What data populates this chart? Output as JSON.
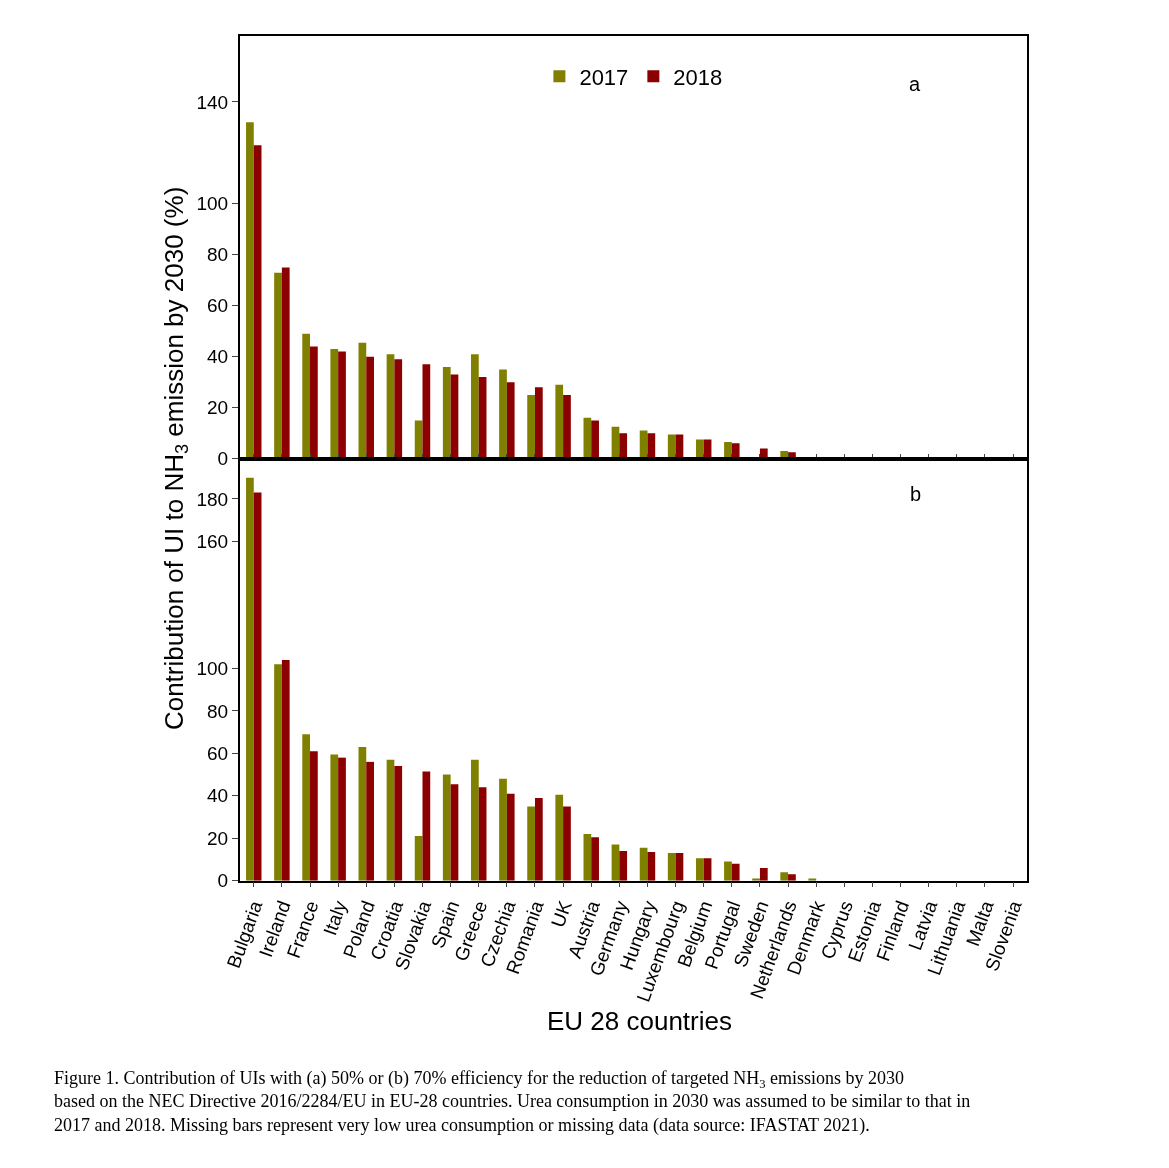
{
  "chart_data": [
    {
      "type": "bar",
      "annotations": [
        "a"
      ],
      "ylabel": "Contribution of UI to NH$_{3}$ emission by 2030 (%)",
      "categories": [
        null,
        null,
        null,
        null,
        null,
        null,
        null,
        null,
        null,
        null,
        null,
        null,
        null,
        null,
        null,
        null,
        null,
        null,
        null,
        null,
        null,
        null,
        null,
        null,
        null,
        null,
        null,
        null
      ],
      "series": [
        {
          "name": "2017",
          "color": "#808000",
          "values": [
            132,
            73,
            49,
            43,
            45.5,
            41,
            15,
            36,
            41,
            35,
            25,
            29,
            16,
            12.5,
            11,
            9.5,
            7.5,
            6.5,
            null,
            3,
            null,
            null,
            null,
            null,
            null,
            null,
            null,
            null
          ]
        },
        {
          "name": "2018",
          "color": "#8b0000",
          "values": [
            123,
            75,
            44,
            42,
            40,
            39,
            37,
            33,
            32,
            30,
            28,
            25,
            15,
            10,
            10,
            9.5,
            7.5,
            6,
            4,
            2.5,
            null,
            null,
            null,
            null,
            null,
            null,
            null,
            null
          ]
        }
      ],
      "ylim": [
        0,
        166
      ],
      "yticks": [
        0,
        20,
        40,
        60,
        80,
        100,
        140
      ],
      "legend": "top",
      "tick_labels": "y"
    },
    {
      "type": "bar",
      "annotations": [
        "b",
        "Figure 1. Contribution of UIs with (a) 50% or (b) 70% efficiency for the reduction of targeted NH$_{3}$ emissions by 2030 based on the NEC Directive 2016/2284/EU in EU-28 countries. Urea consumption in 2030 was assumed to be similar to that in 2017 and 2018. Missing bars represent very low urea consumption or missing data (data source: IFASTAT 2021)."
      ],
      "xlabel": "EU 28 countries",
      "categories": [
        "Bulgaria",
        "Ireland",
        "France",
        "Italy",
        "Poland",
        "Croatia",
        "Slovakia",
        "Spain",
        "Greece",
        "Czechia",
        "Romania",
        "UK",
        "Austria",
        "Germany",
        "Hungary",
        "Luxembourg",
        "Belgium",
        "Portugal",
        "Sweden",
        "Netherlands",
        "Denmark",
        "Cyprus",
        "Estonia",
        "Finland",
        "Latvia",
        "Lithuania",
        "Malta",
        "Slovenia"
      ],
      "series": [
        {
          "color": "#808000",
          "values": [
            190,
            102,
            69,
            59.5,
            63,
            57,
            21,
            50,
            57,
            48,
            35,
            40.5,
            22,
            17,
            15.5,
            13,
            10.5,
            9,
            1,
            4,
            1,
            null,
            null,
            null,
            null,
            null,
            null,
            null
          ]
        },
        {
          "color": "#8b0000",
          "values": [
            183,
            104,
            61,
            58,
            56,
            54,
            51.5,
            45.5,
            44,
            41,
            39,
            35,
            20.5,
            14,
            13.5,
            13,
            10.5,
            8,
            6,
            3,
            null,
            null,
            null,
            null,
            null,
            null,
            null,
            null
          ]
        }
      ],
      "ylim": [
        0,
        199
      ],
      "yticks": [
        0,
        20,
        40,
        60,
        80,
        100,
        160,
        180
      ]
    }
  ]
}
